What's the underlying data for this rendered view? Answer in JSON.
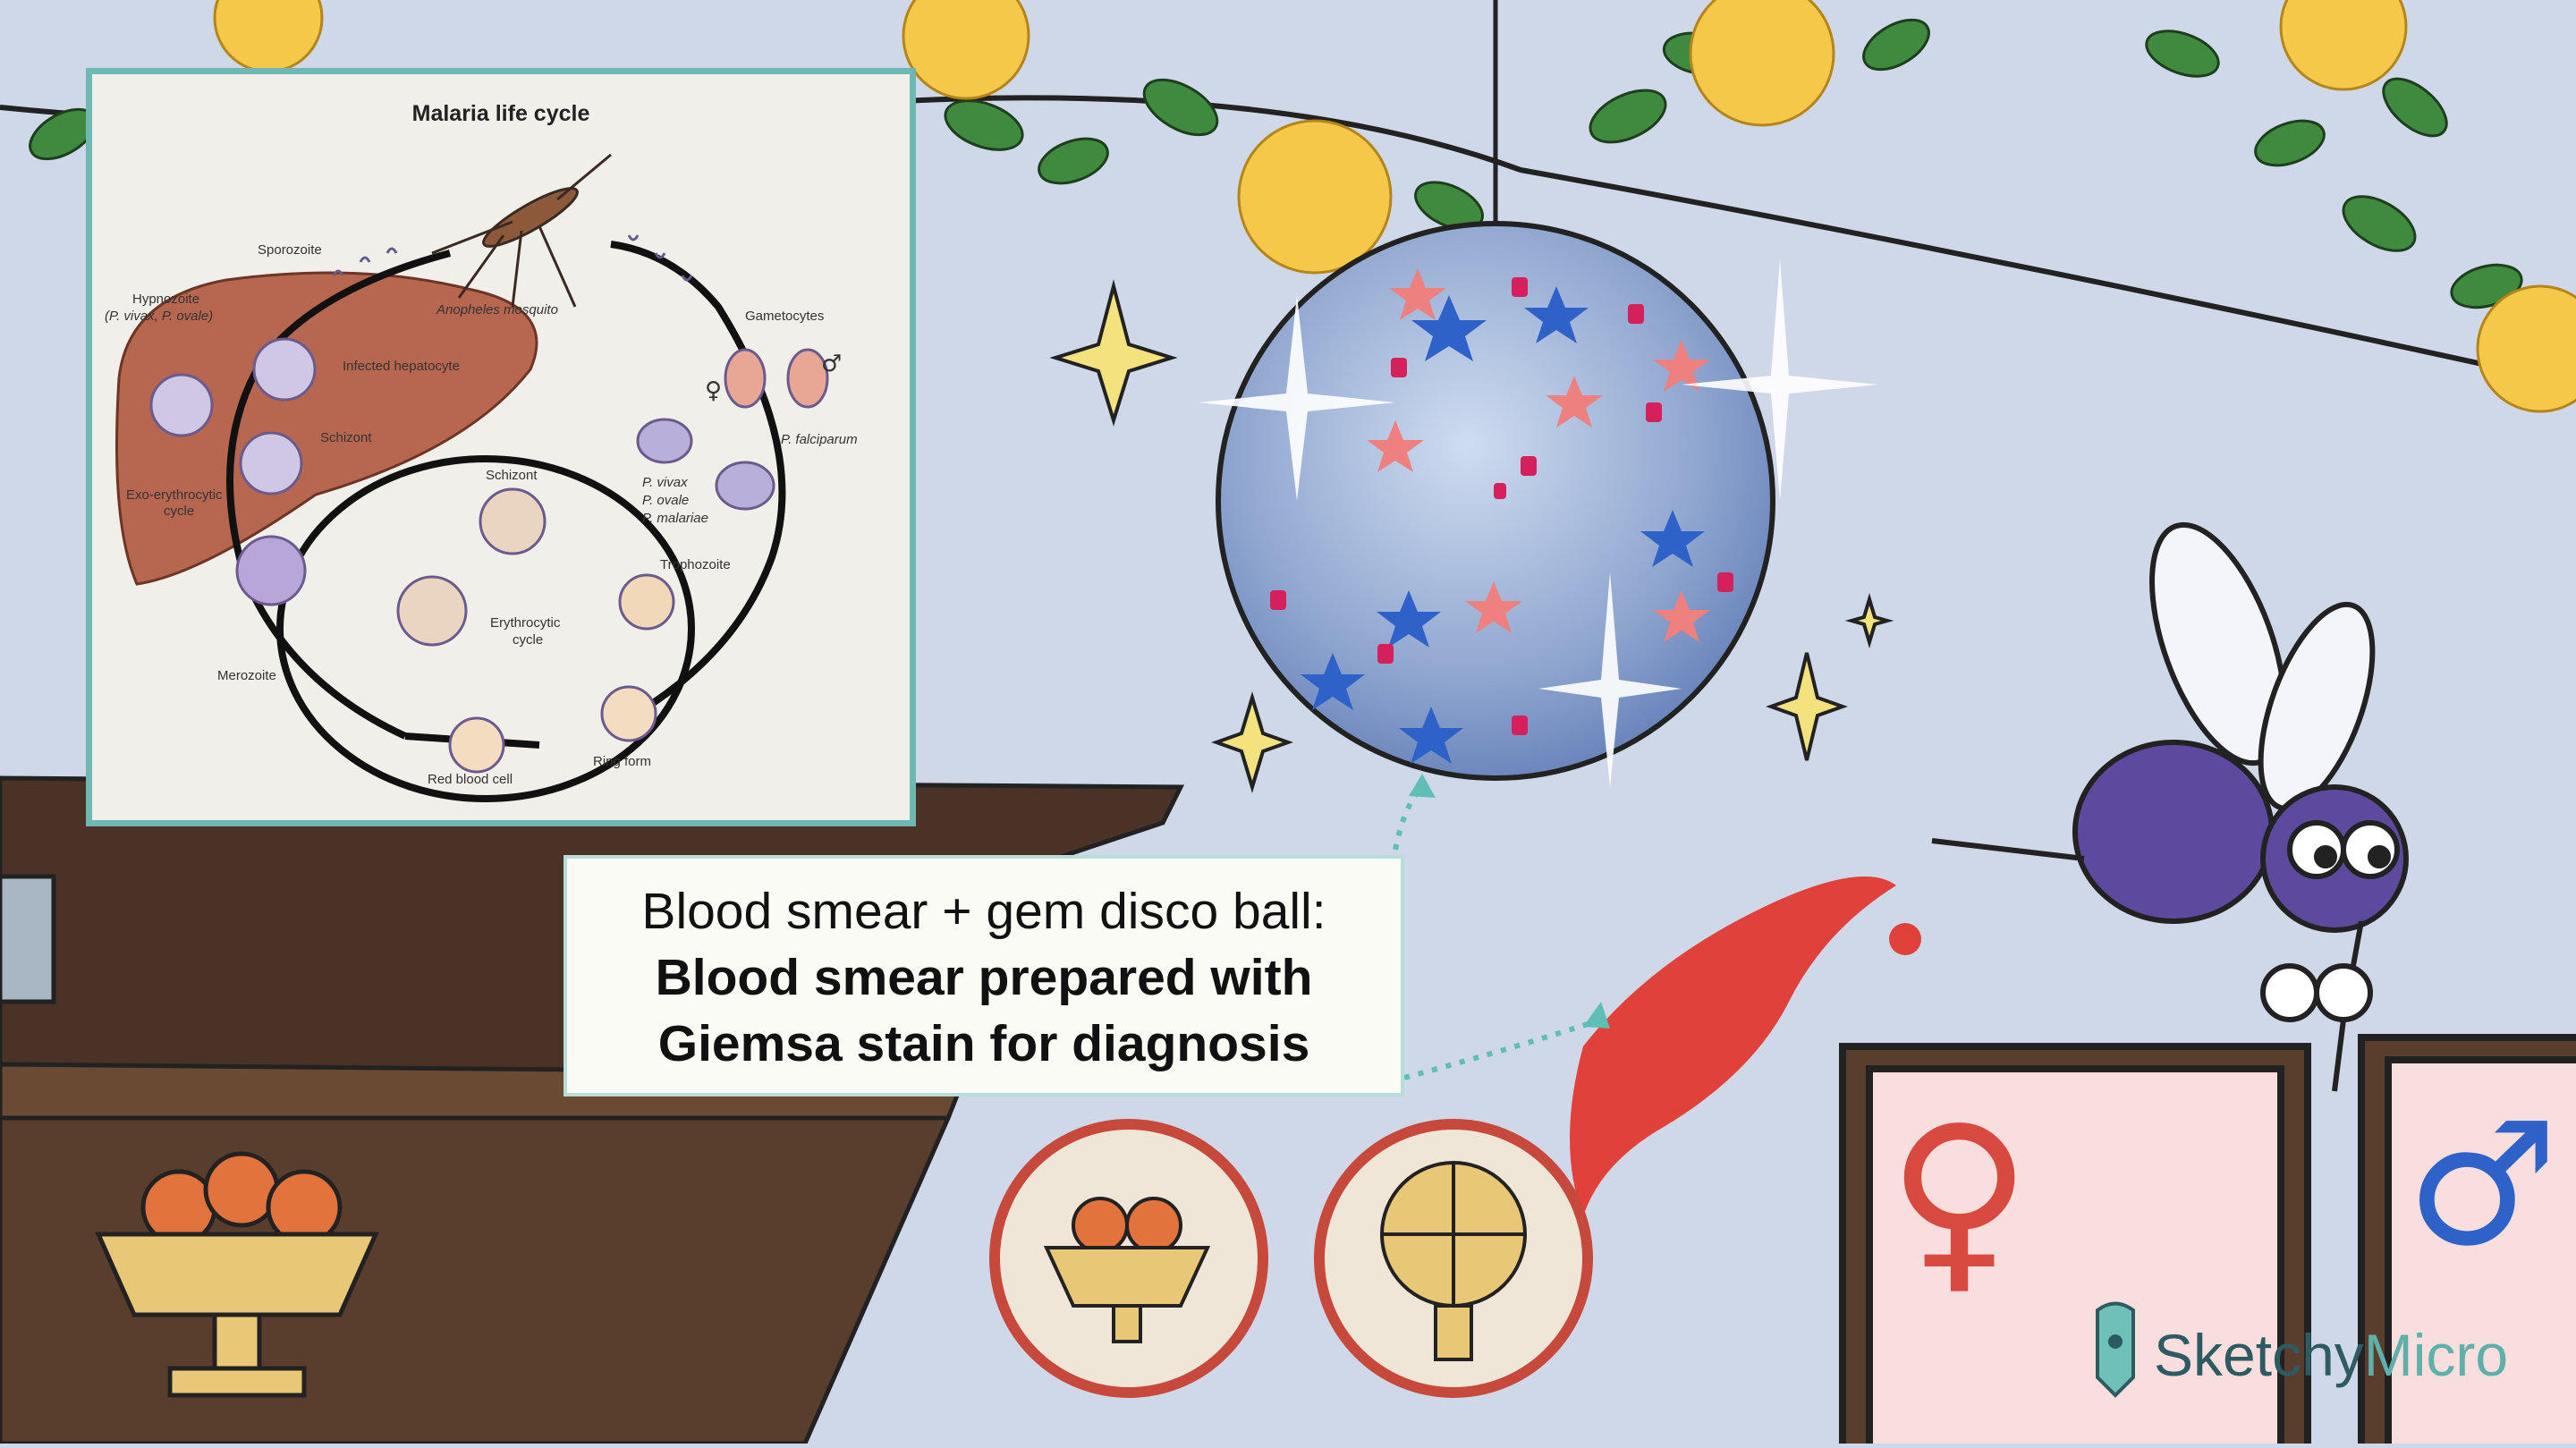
{
  "diagram": {
    "title": "Malaria life cycle",
    "labels": {
      "sporozoite": "Sporozoite",
      "hypnozoite": "Hypnozoite",
      "hypnozoite_species": "(P. vivax, P. ovale)",
      "infected_hepatocyte": "Infected hepatocyte",
      "schizont_liver": "Schizont",
      "exo_cycle_1": "Exo-erythrocytic",
      "exo_cycle_2": "cycle",
      "mosquito": "Anopheles mosquito",
      "gametocytes": "Gametocytes",
      "falciparum": "P. falciparum",
      "species_1": "P. vivax",
      "species_2": "P. ovale",
      "species_3": "P. malariae",
      "schizont_rbc": "Schizont",
      "trophozoite": "Trophozoite",
      "ery_cycle_1": "Erythrocytic",
      "ery_cycle_2": "cycle",
      "merozoite": "Merozoite",
      "red_blood_cell": "Red blood cell",
      "ring_form": "Ring form",
      "female_symbol": "♀",
      "male_symbol": "♂"
    }
  },
  "caption": {
    "line1": "Blood smear + gem disco ball:",
    "line2": "Blood smear prepared with",
    "line3": "Giemsa stain for diagnosis"
  },
  "logo": {
    "part1": "Sketchy",
    "part2": "Micro"
  },
  "signs": {
    "female": "♀",
    "male": "♂"
  },
  "colors": {
    "background": "#cfd8e8",
    "accent_teal": "#6fb7b3",
    "blood_red": "#e0413a",
    "fly_purple": "#5d4a9e"
  }
}
